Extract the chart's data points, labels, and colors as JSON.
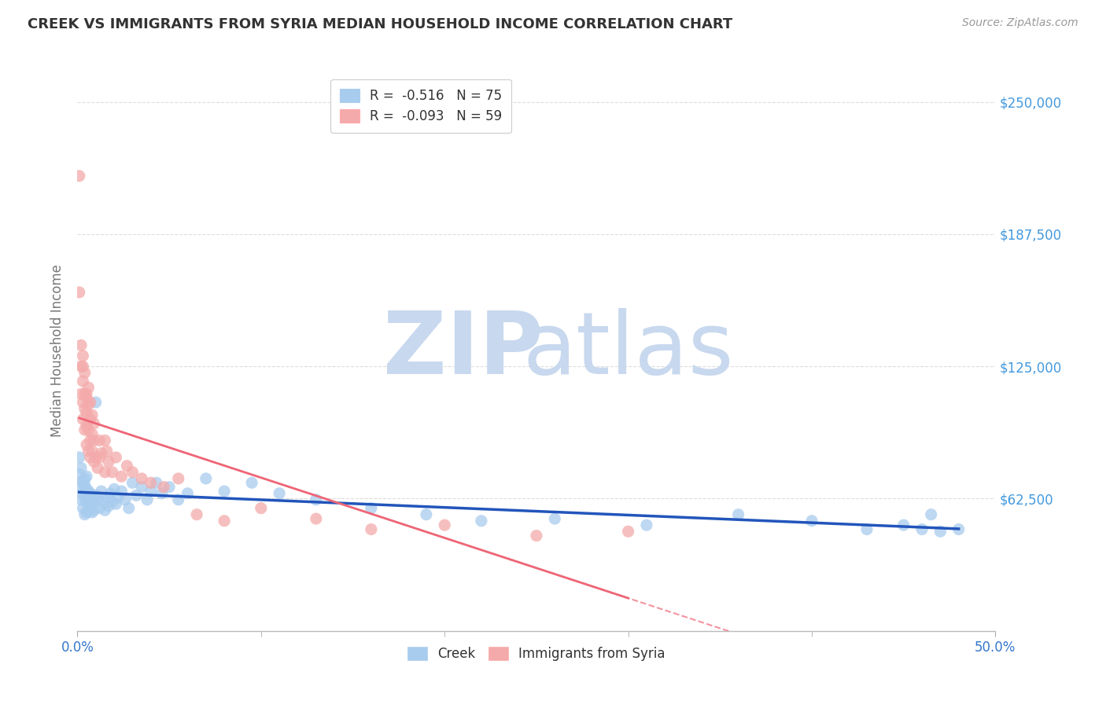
{
  "title": "CREEK VS IMMIGRANTS FROM SYRIA MEDIAN HOUSEHOLD INCOME CORRELATION CHART",
  "source": "Source: ZipAtlas.com",
  "ylabel": "Median Household Income",
  "yticks": [
    0,
    62500,
    125000,
    187500,
    250000
  ],
  "xlim": [
    0.0,
    0.5
  ],
  "ylim": [
    0,
    265000
  ],
  "creek_R": -0.516,
  "creek_N": 75,
  "syria_R": -0.093,
  "syria_N": 59,
  "creek_color": "#A8CCEE",
  "syria_color": "#F4AAAA",
  "creek_line_color": "#2255BB",
  "syria_line_color": "#EE6677",
  "legend_label_creek": "Creek",
  "legend_label_syria": "Immigrants from Syria",
  "creek_x": [
    0.001,
    0.001,
    0.002,
    0.002,
    0.002,
    0.003,
    0.003,
    0.003,
    0.003,
    0.004,
    0.004,
    0.004,
    0.004,
    0.005,
    0.005,
    0.005,
    0.005,
    0.005,
    0.006,
    0.006,
    0.006,
    0.006,
    0.007,
    0.007,
    0.007,
    0.008,
    0.008,
    0.008,
    0.009,
    0.009,
    0.01,
    0.01,
    0.011,
    0.012,
    0.013,
    0.014,
    0.015,
    0.016,
    0.017,
    0.018,
    0.019,
    0.02,
    0.021,
    0.022,
    0.024,
    0.026,
    0.028,
    0.03,
    0.032,
    0.035,
    0.038,
    0.04,
    0.043,
    0.046,
    0.05,
    0.055,
    0.06,
    0.07,
    0.08,
    0.095,
    0.11,
    0.13,
    0.16,
    0.19,
    0.22,
    0.26,
    0.31,
    0.36,
    0.4,
    0.43,
    0.45,
    0.46,
    0.465,
    0.47,
    0.48
  ],
  "creek_y": [
    82000,
    74000,
    77000,
    68000,
    62000,
    71000,
    65000,
    70000,
    58000,
    69000,
    63000,
    72000,
    55000,
    67000,
    61000,
    73000,
    56000,
    64000,
    60000,
    66000,
    57000,
    63000,
    62000,
    58000,
    65000,
    60000,
    56000,
    63000,
    61000,
    57000,
    108000,
    64000,
    62000,
    58000,
    66000,
    61000,
    57000,
    63000,
    59000,
    65000,
    61000,
    67000,
    60000,
    63000,
    66000,
    62000,
    58000,
    70000,
    64000,
    68000,
    62000,
    66000,
    70000,
    65000,
    68000,
    62000,
    65000,
    72000,
    66000,
    70000,
    65000,
    62000,
    58000,
    55000,
    52000,
    53000,
    50000,
    55000,
    52000,
    48000,
    50000,
    48000,
    55000,
    47000,
    48000
  ],
  "syria_x": [
    0.001,
    0.001,
    0.002,
    0.002,
    0.002,
    0.003,
    0.003,
    0.003,
    0.003,
    0.004,
    0.004,
    0.004,
    0.005,
    0.005,
    0.005,
    0.005,
    0.006,
    0.006,
    0.006,
    0.007,
    0.007,
    0.007,
    0.008,
    0.008,
    0.009,
    0.009,
    0.01,
    0.011,
    0.012,
    0.013,
    0.015,
    0.017,
    0.019,
    0.021,
    0.024,
    0.027,
    0.03,
    0.035,
    0.04,
    0.047,
    0.055,
    0.065,
    0.08,
    0.1,
    0.13,
    0.16,
    0.2,
    0.25,
    0.3,
    0.015,
    0.003,
    0.004,
    0.005,
    0.006,
    0.007,
    0.008,
    0.009,
    0.012,
    0.016
  ],
  "syria_y": [
    215000,
    160000,
    135000,
    125000,
    112000,
    118000,
    108000,
    125000,
    100000,
    112000,
    105000,
    95000,
    103000,
    97000,
    110000,
    88000,
    95000,
    107000,
    85000,
    100000,
    90000,
    82000,
    93000,
    85000,
    90000,
    80000,
    82000,
    77000,
    82000,
    84000,
    90000,
    80000,
    75000,
    82000,
    73000,
    78000,
    75000,
    72000,
    70000,
    68000,
    72000,
    55000,
    52000,
    58000,
    53000,
    48000,
    50000,
    45000,
    47000,
    75000,
    130000,
    122000,
    112000,
    115000,
    108000,
    102000,
    98000,
    90000,
    85000
  ]
}
